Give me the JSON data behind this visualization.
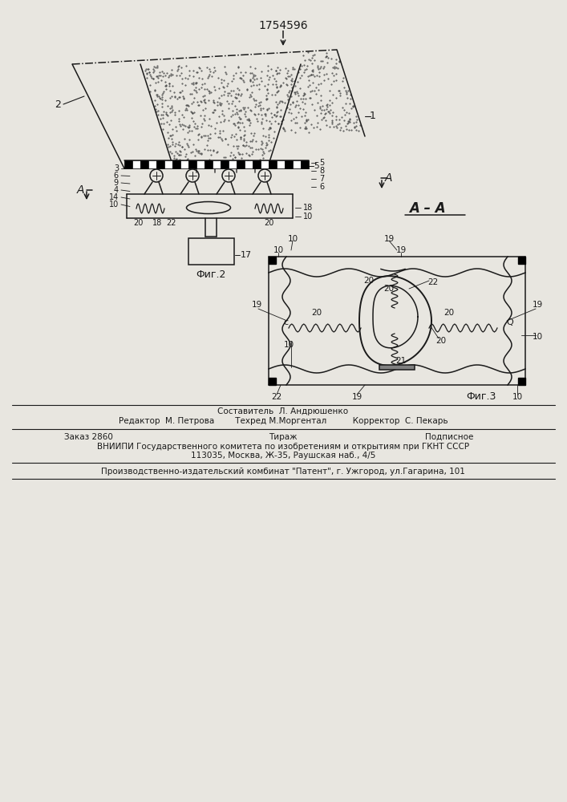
{
  "title": "1754596",
  "bg_color": "#e8e6e0",
  "line_color": "#1a1a1a",
  "fig2_label": "Фиг.2",
  "fig3_label": "Фиг.3",
  "aa_label": "А – А",
  "footer_lines": [
    "Составитель  Л. Андрюшенко",
    "Редактор  М. Петрова        Техред М.Моргентал          Корректор  С. Пекарь",
    "ВНИИПИ Государственного комитета по изобретениям и открытиям при ГКНТ СССР",
    "113035, Москва, Ж-35, Раушская наб., 4/5",
    "Производственно-издательский комбинат \"Патент\", г. Ужгород, ул.Гагарина, 101"
  ]
}
